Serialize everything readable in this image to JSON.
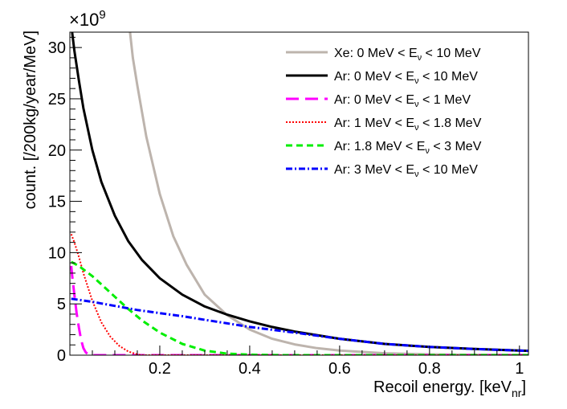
{
  "chart_data": {
    "type": "line",
    "xlabel": "Recoil energy. [keV",
    "xlabel_sub": "nr",
    "xlabel_close": "]",
    "ylabel": "count. [/200kg/year/MeV]",
    "y_exponent_label": "×10",
    "y_exponent_power": "9",
    "xlim": [
      0.0,
      1.02
    ],
    "ylim": [
      0,
      31.5
    ],
    "x_ticks": [
      {
        "value": 0.2,
        "label": "0.2"
      },
      {
        "value": 0.4,
        "label": "0.4"
      },
      {
        "value": 0.6,
        "label": "0.6"
      },
      {
        "value": 0.8,
        "label": "0.8"
      },
      {
        "value": 1.0,
        "label": "1"
      }
    ],
    "y_ticks": [
      {
        "value": 0,
        "label": "0"
      },
      {
        "value": 5,
        "label": "5"
      },
      {
        "value": 10,
        "label": "10"
      },
      {
        "value": 15,
        "label": "15"
      },
      {
        "value": 20,
        "label": "20"
      },
      {
        "value": 25,
        "label": "25"
      },
      {
        "value": 30,
        "label": "30"
      }
    ],
    "series": [
      {
        "name": "Xe: 0 MeV < Eν < 10 MeV",
        "legend": {
          "pre": "Xe: 0 MeV < E",
          "sub": "ν",
          "post": " < 10 MeV"
        },
        "color": "#bdb4ad",
        "dash": "",
        "width": 3,
        "x": [
          0.12,
          0.13,
          0.14,
          0.15,
          0.17,
          0.2,
          0.23,
          0.26,
          0.3,
          0.35,
          0.4,
          0.45,
          0.5,
          0.55,
          0.6,
          0.7,
          0.8,
          0.9,
          1.0,
          1.02
        ],
        "y": [
          40,
          33,
          29,
          26.3,
          21.3,
          15.7,
          11.6,
          8.8,
          5.9,
          3.9,
          2.5,
          1.6,
          1.05,
          0.68,
          0.45,
          0.19,
          0.08,
          0.04,
          0.02,
          0.02
        ]
      },
      {
        "name": "Ar: 0 MeV < Eν < 10 MeV",
        "legend": {
          "pre": "Ar: 0 MeV < E",
          "sub": "ν",
          "post": " < 10 MeV"
        },
        "color": "#000000",
        "dash": "",
        "width": 3,
        "x": [
          0.005,
          0.01,
          0.02,
          0.03,
          0.05,
          0.07,
          0.1,
          0.13,
          0.16,
          0.2,
          0.25,
          0.3,
          0.35,
          0.4,
          0.45,
          0.5,
          0.6,
          0.7,
          0.8,
          0.9,
          1.0,
          1.02
        ],
        "y": [
          31.5,
          29.7,
          26.8,
          24.1,
          20.0,
          16.9,
          13.6,
          11.1,
          9.3,
          7.5,
          5.9,
          4.75,
          3.95,
          3.3,
          2.75,
          2.3,
          1.6,
          1.1,
          0.8,
          0.6,
          0.45,
          0.42
        ]
      },
      {
        "name": "Ar: 0 MeV < Eν < 1 MeV",
        "legend": {
          "pre": "Ar: 0 MeV < E",
          "sub": "ν",
          "post": " < 1 MeV"
        },
        "color": "#ff00ff",
        "dash": "16 8",
        "width": 3,
        "x": [
          0.003,
          0.005,
          0.01,
          0.015,
          0.02,
          0.025,
          0.03,
          0.035,
          0.04,
          0.05,
          0.1,
          0.5,
          1.02
        ],
        "y": [
          8.7,
          7.8,
          5.9,
          4.1,
          2.7,
          1.5,
          0.7,
          0.3,
          0.1,
          0,
          0,
          0,
          0
        ]
      },
      {
        "name": "Ar: 1 MeV < Eν < 1.8 MeV",
        "legend": {
          "pre": "Ar: 1 MeV < E",
          "sub": "ν",
          "post": " < 1.8 MeV"
        },
        "color": "#ff0000",
        "dash": "2 2",
        "width": 2,
        "x": [
          0.003,
          0.01,
          0.02,
          0.03,
          0.05,
          0.07,
          0.09,
          0.11,
          0.13,
          0.15,
          0.16,
          0.2,
          0.5,
          1.02
        ],
        "y": [
          11.8,
          11.0,
          9.6,
          8.0,
          5.3,
          3.2,
          1.8,
          0.9,
          0.35,
          0.08,
          0,
          0,
          0,
          0
        ]
      },
      {
        "name": "Ar: 1.8 MeV < Eν < 3 MeV",
        "legend": {
          "pre": "Ar: 1.8 MeV < E",
          "sub": "ν",
          "post": " < 3 MeV"
        },
        "color": "#00ee00",
        "dash": "8 5",
        "width": 3,
        "x": [
          0.003,
          0.02,
          0.05,
          0.08,
          0.1,
          0.13,
          0.16,
          0.2,
          0.25,
          0.3,
          0.35,
          0.4,
          0.45,
          0.5,
          0.6,
          1.02
        ],
        "y": [
          9.1,
          8.7,
          7.7,
          6.5,
          5.7,
          4.5,
          3.4,
          2.2,
          1.1,
          0.45,
          0.15,
          0.05,
          0.01,
          0,
          0,
          0
        ]
      },
      {
        "name": "Ar: 3 MeV < Eν < 10 MeV",
        "legend": {
          "pre": "Ar: 3 MeV < E",
          "sub": "ν",
          "post": " < 10 MeV"
        },
        "color": "#0000ff",
        "dash": "8 3 2 3",
        "width": 3,
        "x": [
          0.003,
          0.05,
          0.1,
          0.15,
          0.2,
          0.25,
          0.3,
          0.35,
          0.4,
          0.5,
          0.6,
          0.7,
          0.8,
          0.9,
          1.0,
          1.02
        ],
        "y": [
          5.5,
          5.2,
          4.8,
          4.4,
          4.1,
          3.8,
          3.45,
          3.1,
          2.75,
          2.2,
          1.6,
          1.1,
          0.8,
          0.6,
          0.45,
          0.42
        ]
      }
    ]
  }
}
